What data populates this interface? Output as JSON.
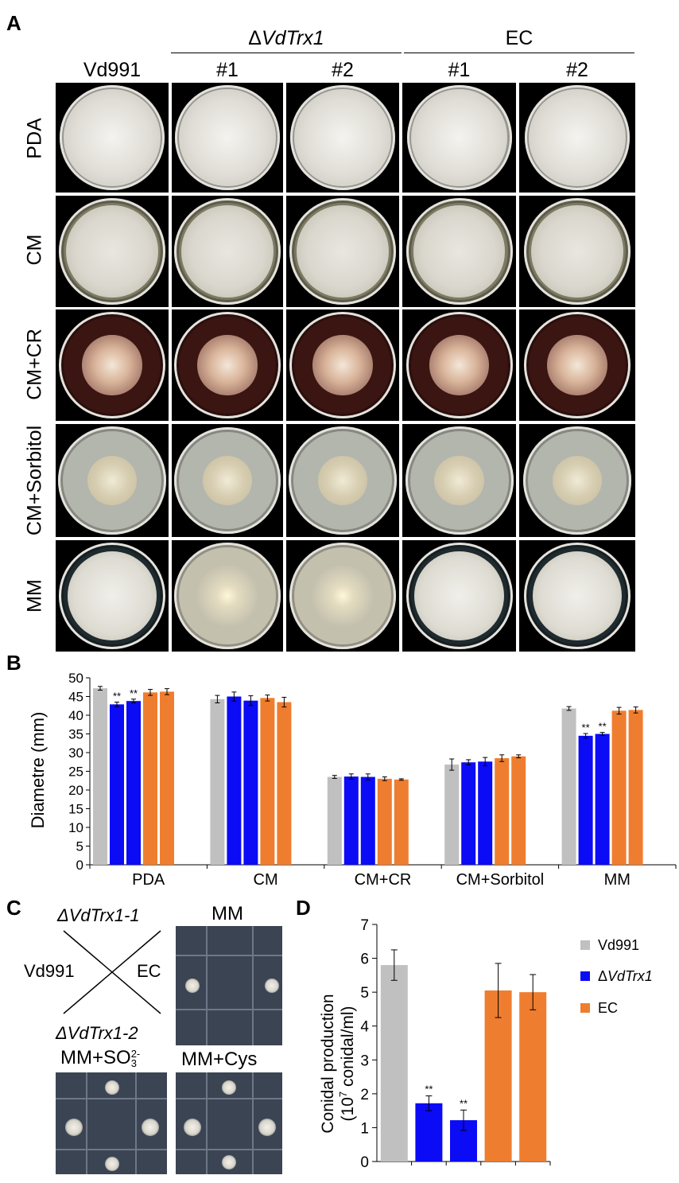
{
  "panelA": {
    "letter": "A",
    "group_delta": "ΔVdTrx1",
    "group_ec": "EC",
    "columns": [
      "Vd991",
      "#1",
      "#2",
      "#1",
      "#2"
    ],
    "rows": [
      "PDA",
      "CM",
      "CM+CR",
      "CM+Sorbitol",
      "MM"
    ]
  },
  "panelB": {
    "letter": "B"
  },
  "panelC": {
    "letter": "C",
    "cross_top": "ΔVdTrx1-1",
    "cross_left": "Vd991",
    "cross_right": "EC",
    "cross_bottom": "ΔVdTrx1-2",
    "plate_mm": "MM",
    "plate_so3": "MM+SO",
    "so3_sup": "2-",
    "so3_sub": "3",
    "plate_cys": "MM+Cys"
  },
  "panelD": {
    "letter": "D"
  },
  "colors": {
    "vd991": "#c0c0c0",
    "mutant": "#0b0bf5",
    "ec": "#ef7d2f"
  },
  "chart_data": [
    {
      "type": "bar",
      "categories": [
        "PDA",
        "CM",
        "CM+CR",
        "CM+Sorbitol",
        "MM"
      ],
      "ylabel": "Diametre (mm)",
      "ylim": [
        0,
        50
      ],
      "yticks": [
        0,
        5,
        10,
        15,
        20,
        25,
        30,
        35,
        40,
        45,
        50
      ],
      "series": [
        {
          "values": [
            47.2,
            44.3,
            23.5,
            26.8,
            41.8
          ],
          "errors": [
            0.5,
            1.0,
            0.4,
            1.5,
            0.5
          ],
          "color": "#c0c0c0",
          "sig": [
            "",
            "",
            "",
            "",
            ""
          ]
        },
        {
          "values": [
            42.9,
            45.0,
            23.6,
            27.4,
            34.5
          ],
          "errors": [
            0.6,
            1.2,
            0.7,
            0.7,
            0.6
          ],
          "color": "#0b0bf5",
          "sig": [
            "**",
            "",
            "",
            "",
            "**"
          ]
        },
        {
          "values": [
            43.8,
            43.9,
            23.5,
            27.6,
            35.0
          ],
          "errors": [
            0.5,
            1.3,
            0.8,
            1.1,
            0.4
          ],
          "color": "#0b0bf5",
          "sig": [
            "**",
            "",
            "",
            "",
            "**"
          ]
        },
        {
          "values": [
            46.1,
            44.6,
            23.0,
            28.5,
            41.2
          ],
          "errors": [
            0.8,
            0.8,
            0.5,
            0.9,
            0.9
          ],
          "color": "#ef7d2f",
          "sig": [
            "",
            "",
            "",
            "",
            ""
          ]
        },
        {
          "values": [
            46.3,
            43.5,
            22.8,
            29.0,
            41.4
          ],
          "errors": [
            0.8,
            1.3,
            0.2,
            0.4,
            0.8
          ],
          "color": "#ef7d2f",
          "sig": [
            "",
            "",
            "",
            "",
            ""
          ]
        }
      ]
    },
    {
      "type": "bar",
      "ylabel_line1": "Conidal production",
      "ylabel_line2_pre": "(10",
      "ylabel_line2_sup": "7",
      "ylabel_line2_post": " conidal/ml)",
      "ylim": [
        0,
        7
      ],
      "yticks": [
        0,
        1,
        2,
        3,
        4,
        5,
        6,
        7
      ],
      "values": [
        5.8,
        1.72,
        1.22,
        5.05,
        5.0
      ],
      "errors": [
        0.45,
        0.22,
        0.3,
        0.8,
        0.52
      ],
      "colors": [
        "#c0c0c0",
        "#0b0bf5",
        "#0b0bf5",
        "#ef7d2f",
        "#ef7d2f"
      ],
      "sig": [
        "",
        "**",
        "**",
        "",
        ""
      ],
      "legend": [
        {
          "label": "Vd991",
          "color": "#c0c0c0"
        },
        {
          "label": "ΔVdTrx1",
          "color": "#0b0bf5"
        },
        {
          "label": "EC",
          "color": "#ef7d2f"
        }
      ],
      "legend_position": "top-right"
    }
  ]
}
